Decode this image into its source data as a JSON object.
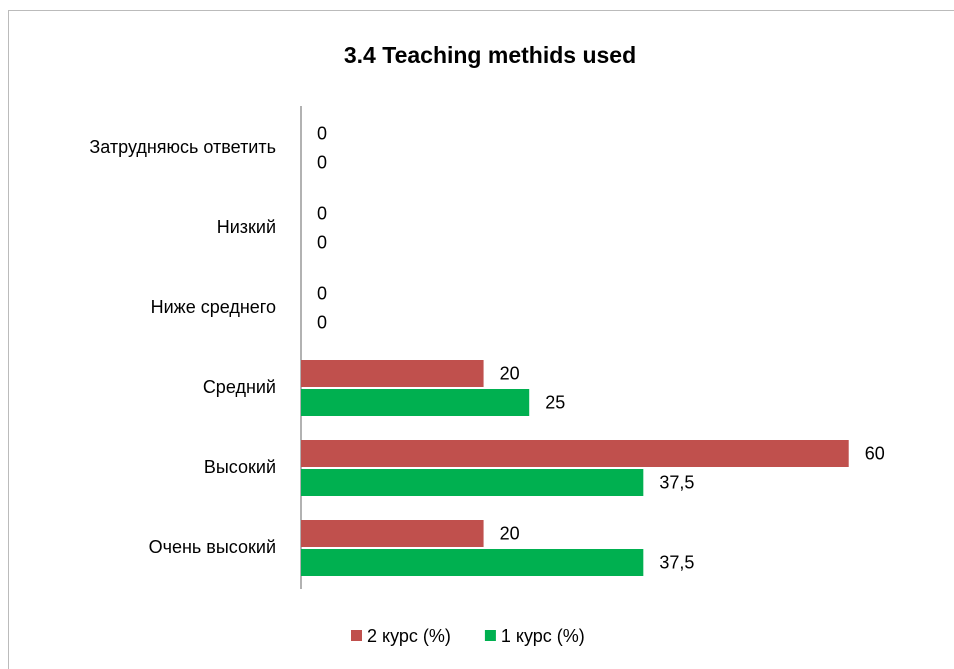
{
  "chart_data": {
    "type": "barh",
    "title": "3.4 Teaching methids used",
    "categories": [
      "Затрудняюсь ответить",
      "Низкий",
      "Ниже среднего",
      "Средний",
      "Высокий",
      "Очень высокий"
    ],
    "series": [
      {
        "name": "2 курс (%)",
        "color": "#c0504d",
        "values": [
          0,
          0,
          0,
          20,
          60,
          20
        ]
      },
      {
        "name": "1 курс (%)",
        "color": "#00b050",
        "values": [
          0,
          0,
          0,
          25,
          37.5,
          37.5
        ],
        "value_labels": [
          "0",
          "0",
          "0",
          "25",
          "37,5",
          "37,5"
        ]
      }
    ],
    "xlim": [
      0,
      70
    ]
  }
}
